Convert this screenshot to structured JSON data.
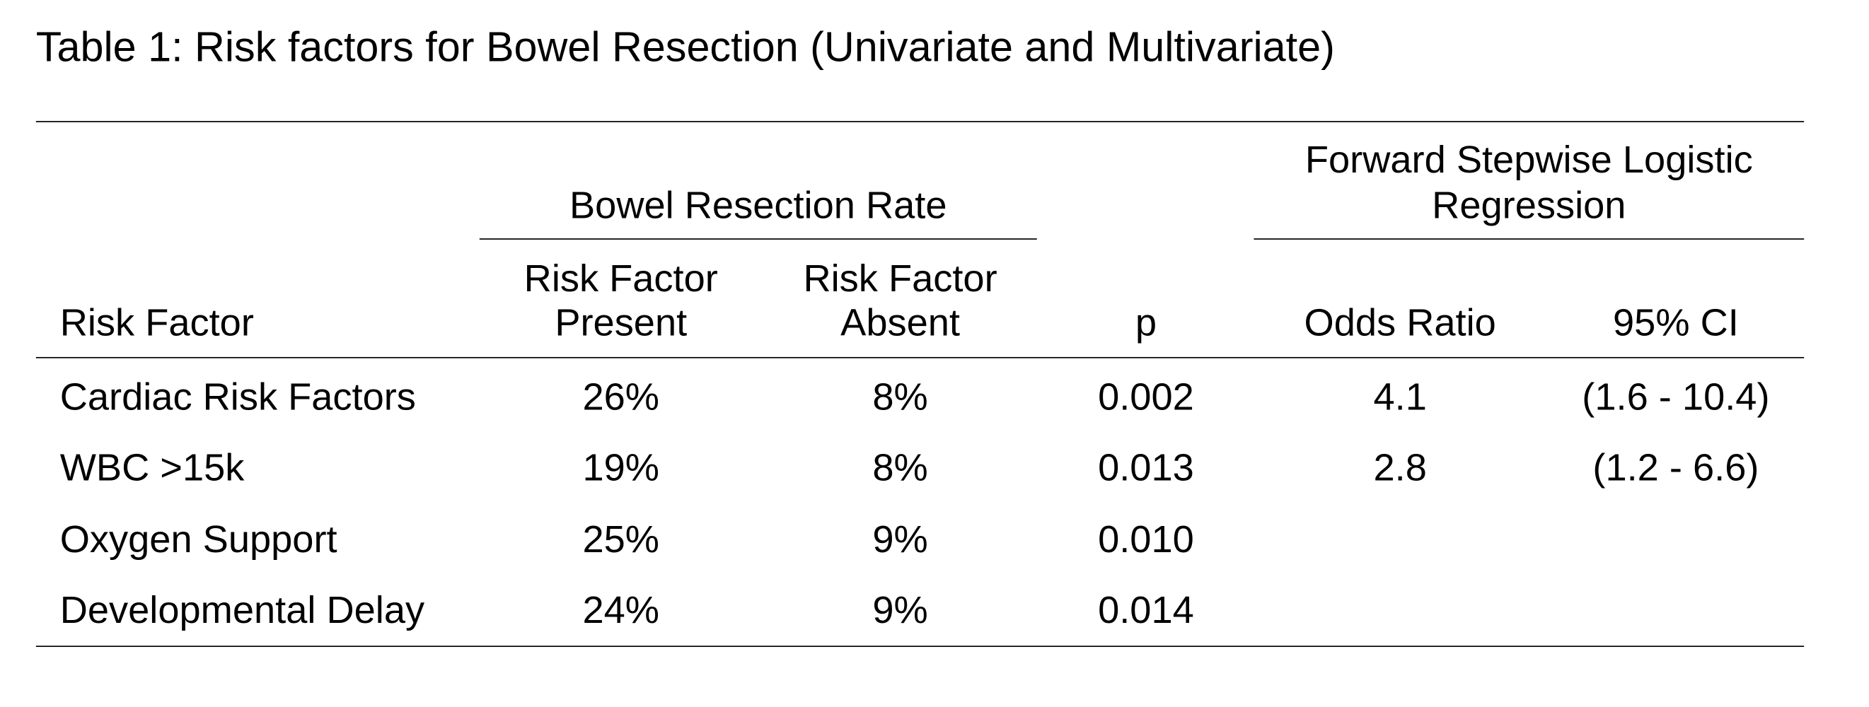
{
  "table": {
    "title": "Table 1: Risk factors for Bowel Resection (Univariate and Multivariate)",
    "group_headers": {
      "bowel_resection_rate": "Bowel Resection Rate",
      "regression_line1": "Forward Stepwise Logistic",
      "regression_line2": "Regression"
    },
    "columns": {
      "risk_factor": "Risk Factor",
      "present_line1": "Risk Factor",
      "present_line2": "Present",
      "absent_line1": "Risk Factor",
      "absent_line2": "Absent",
      "p": "p",
      "odds_ratio": "Odds Ratio",
      "ci": "95% CI"
    },
    "rows": [
      {
        "factor": "Cardiac Risk Factors",
        "present": "26%",
        "absent": "8%",
        "p": "0.002",
        "odds_ratio": "4.1",
        "ci": "(1.6 - 10.4)"
      },
      {
        "factor": "WBC >15k",
        "present": "19%",
        "absent": "8%",
        "p": "0.013",
        "odds_ratio": "2.8",
        "ci": "(1.2 - 6.6)"
      },
      {
        "factor": "Oxygen Support",
        "present": "25%",
        "absent": "9%",
        "p": "0.010",
        "odds_ratio": "",
        "ci": ""
      },
      {
        "factor": "Developmental Delay",
        "present": "24%",
        "absent": "9%",
        "p": "0.014",
        "odds_ratio": "",
        "ci": ""
      }
    ]
  }
}
